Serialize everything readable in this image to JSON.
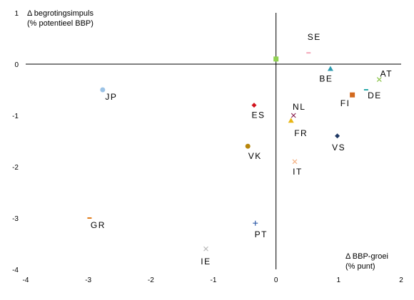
{
  "chart_data": {
    "type": "scatter",
    "title": "",
    "ylabel": "Δ begrotingsimpuls",
    "ylabel_sub": "(% potentieel BBP)",
    "xlabel": "Δ BBP-groei",
    "xlabel_sub": "(% punt)",
    "xlim": [
      -4,
      2
    ],
    "ylim": [
      -4,
      1
    ],
    "x_ticks": [
      "-4",
      "-3",
      "-2",
      "-1",
      "0",
      "1",
      "2"
    ],
    "y_ticks": [
      "1",
      "0",
      "-1",
      "-2",
      "-3",
      "-4"
    ],
    "grid": false,
    "points": [
      {
        "label": "SE",
        "x": 0.52,
        "y": 0.22,
        "marker": "dash",
        "color": "#f4a7b9"
      },
      {
        "label": "",
        "x": 0.0,
        "y": 0.1,
        "marker": "square",
        "color": "#8fd14f"
      },
      {
        "label": "BE",
        "x": 0.87,
        "y": -0.09,
        "marker": "triangle",
        "color": "#2b9aaf"
      },
      {
        "label": "AT",
        "x": 1.65,
        "y": -0.3,
        "marker": "x",
        "color": "#8bc34a"
      },
      {
        "label": "DE",
        "x": 1.44,
        "y": -0.5,
        "marker": "dash",
        "color": "#26a8a8"
      },
      {
        "label": "FI",
        "x": 1.22,
        "y": -0.6,
        "marker": "square",
        "color": "#d2691e"
      },
      {
        "label": "JP",
        "x": -2.77,
        "y": -0.5,
        "marker": "circle",
        "color": "#9cc3e6"
      },
      {
        "label": "ES",
        "x": -0.35,
        "y": -0.8,
        "marker": "diamond",
        "color": "#d2141e"
      },
      {
        "label": "NL",
        "x": 0.28,
        "y": -1.0,
        "marker": "x",
        "color": "#8b2252"
      },
      {
        "label": "FR",
        "x": 0.24,
        "y": -1.1,
        "marker": "triangle",
        "color": "#e8b614"
      },
      {
        "label": "VS",
        "x": 0.98,
        "y": -1.4,
        "marker": "diamond",
        "color": "#1f3864"
      },
      {
        "label": "VK",
        "x": -0.45,
        "y": -1.6,
        "marker": "circle",
        "color": "#b8860b"
      },
      {
        "label": "IT",
        "x": 0.3,
        "y": -1.9,
        "marker": "x",
        "color": "#f4b183"
      },
      {
        "label": "GR",
        "x": -2.98,
        "y": -3.0,
        "marker": "dash",
        "color": "#e07b1a"
      },
      {
        "label": "PT",
        "x": -0.33,
        "y": -3.1,
        "marker": "plus",
        "color": "#2e5aa8"
      },
      {
        "label": "IE",
        "x": -1.12,
        "y": -3.6,
        "marker": "x",
        "color": "#bbbbbb"
      }
    ]
  }
}
